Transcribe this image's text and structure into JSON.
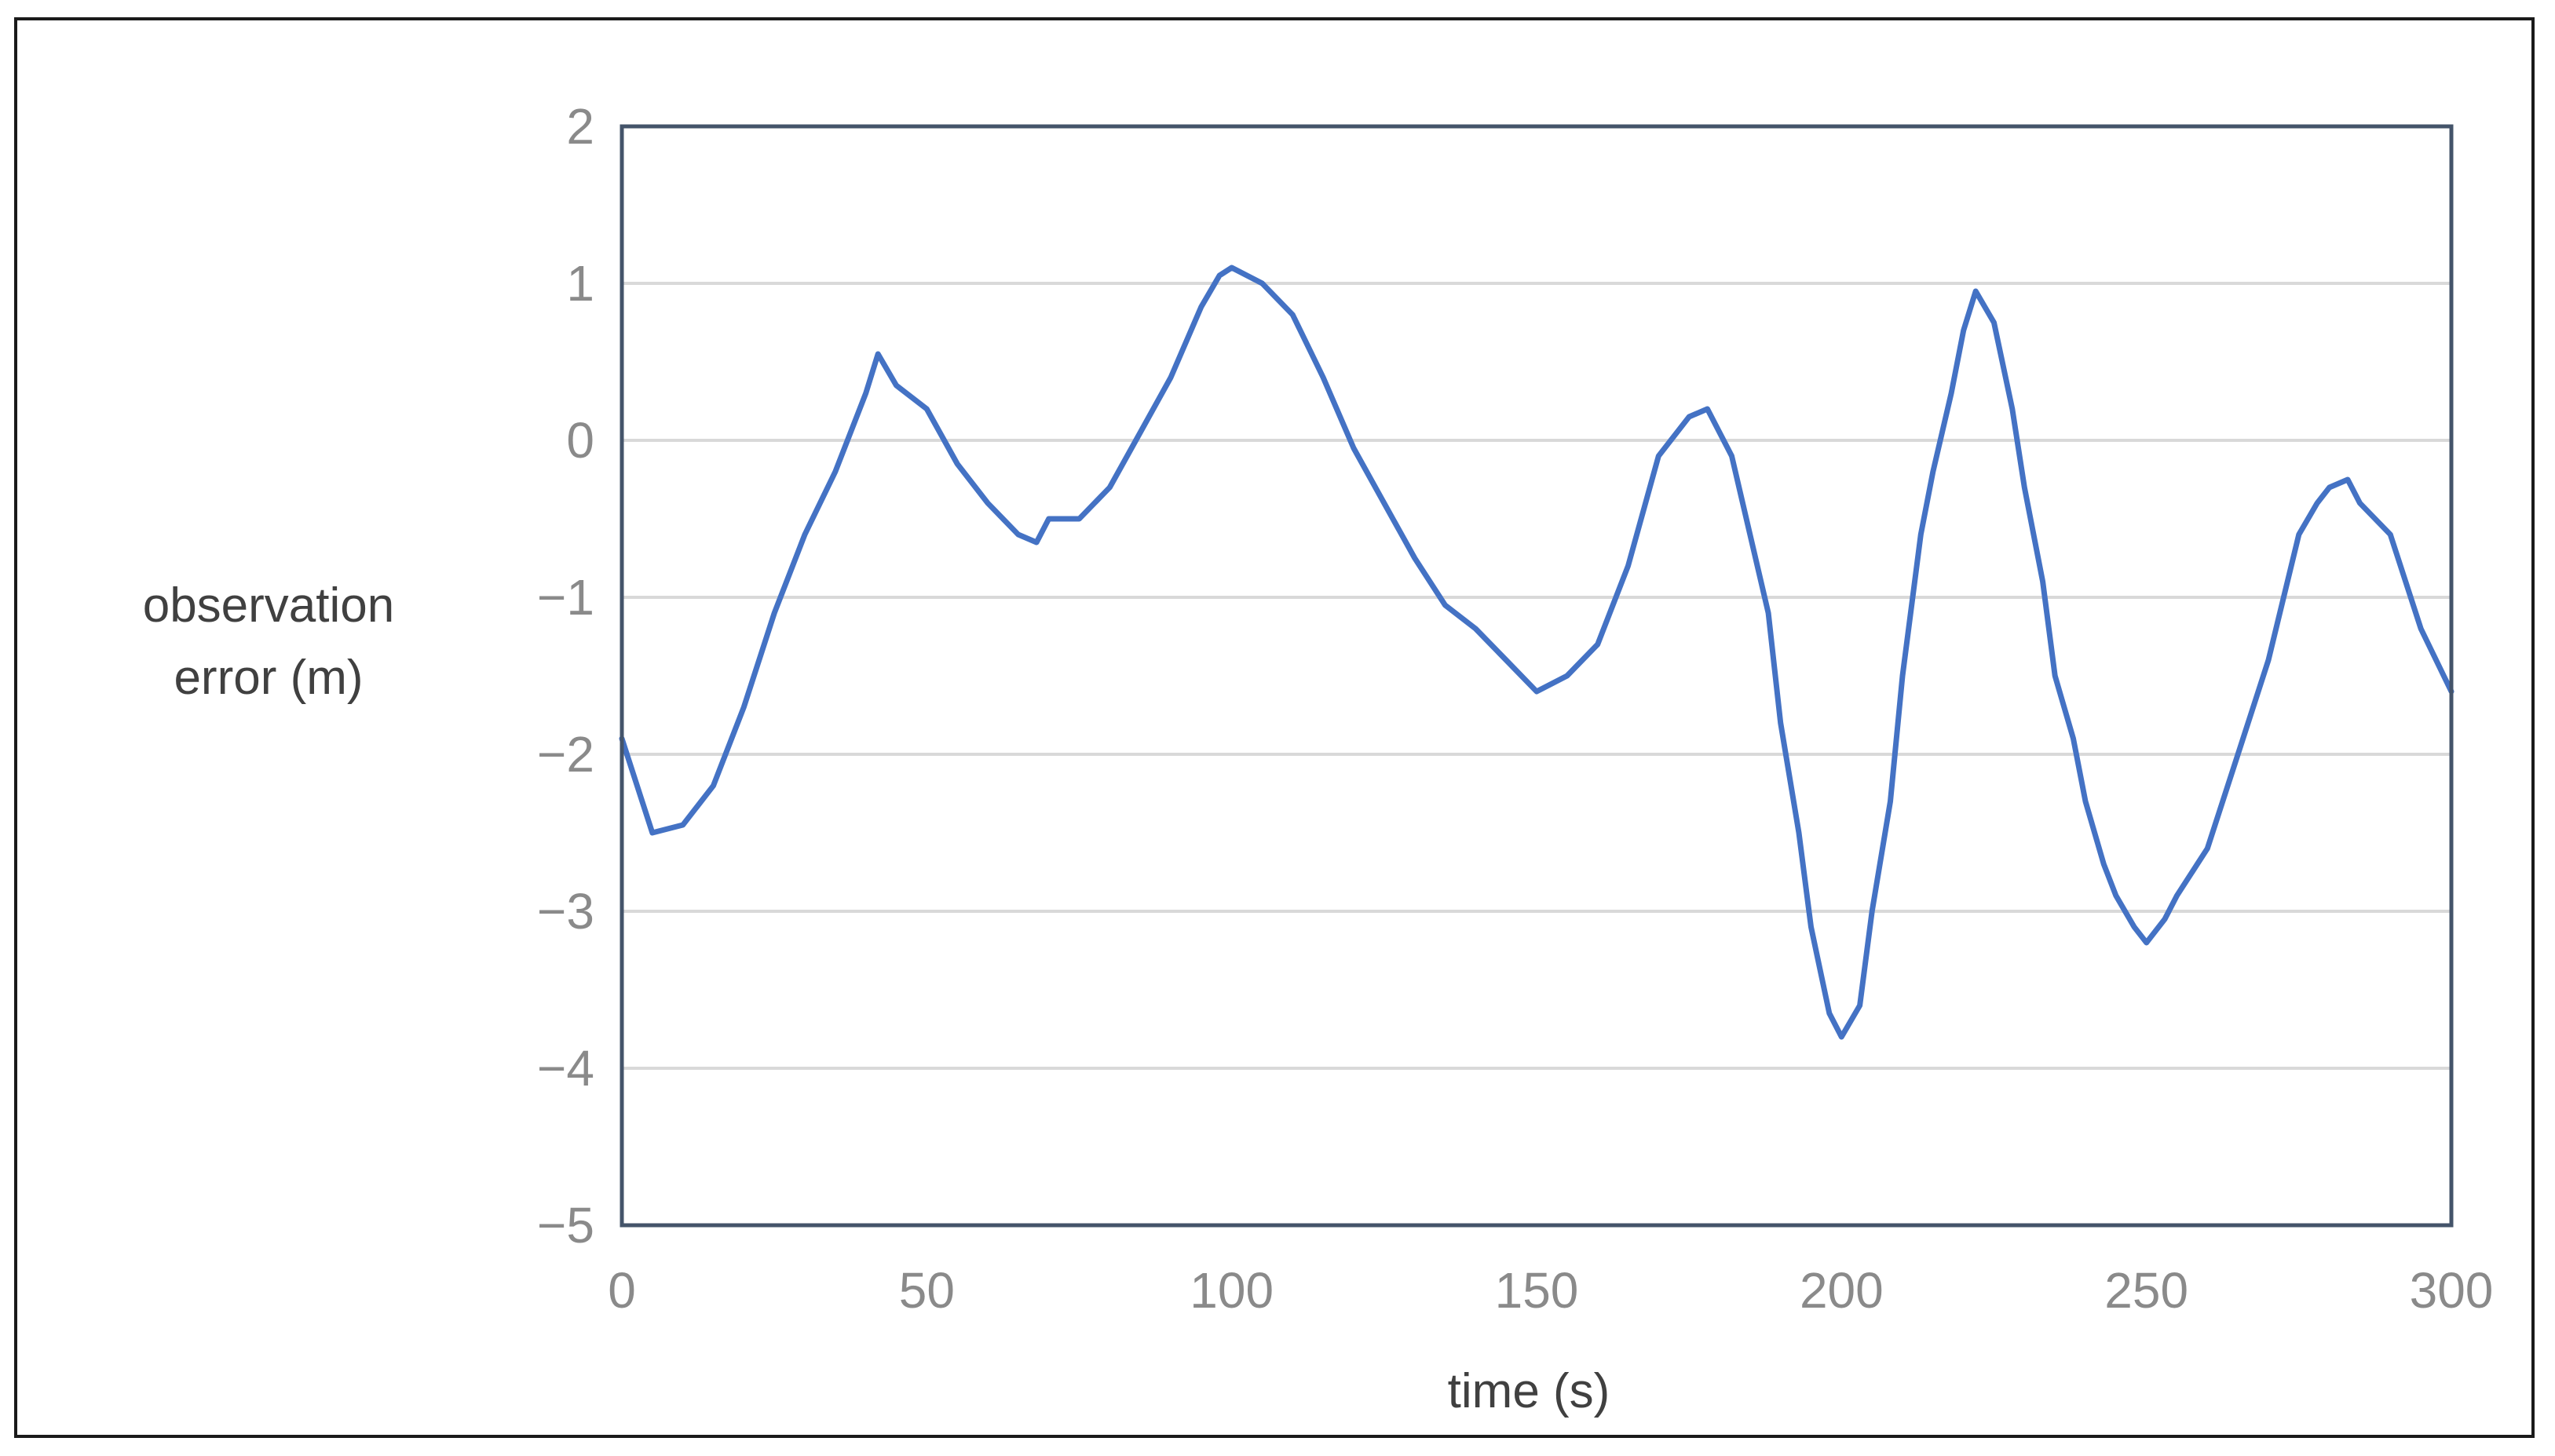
{
  "chart_data": {
    "type": "line",
    "title": "",
    "xlabel": "time (s)",
    "ylabel_lines": [
      "observation",
      "error (m)"
    ],
    "xlim": [
      0,
      300
    ],
    "ylim": [
      -5,
      2
    ],
    "x_ticks": [
      0,
      50,
      100,
      150,
      200,
      250,
      300
    ],
    "y_ticks": [
      2,
      1,
      0,
      -1,
      -2,
      -3,
      -4,
      -5
    ],
    "x_tick_labels": [
      "0",
      "50",
      "100",
      "150",
      "200",
      "250",
      "300"
    ],
    "y_tick_labels": [
      "2",
      "1",
      "0",
      "−1",
      "−2",
      "−3",
      "−4",
      "−5"
    ],
    "grid": true,
    "legend": "none",
    "colors": {
      "line": "#4472c4",
      "grid": "#d9d9d9",
      "frame": "#44546a"
    },
    "series": [
      {
        "x": [
          0,
          5,
          10,
          15,
          20,
          25,
          30,
          35,
          40,
          42,
          45,
          50,
          55,
          60,
          65,
          68,
          70,
          75,
          80,
          85,
          90,
          95,
          98,
          100,
          105,
          110,
          115,
          120,
          125,
          130,
          135,
          140,
          145,
          150,
          155,
          160,
          165,
          170,
          175,
          178,
          182,
          185,
          188,
          190,
          193,
          195,
          198,
          200,
          203,
          205,
          208,
          210,
          213,
          215,
          218,
          220,
          222,
          225,
          228,
          230,
          233,
          235,
          238,
          240,
          243,
          245,
          248,
          250,
          253,
          255,
          260,
          265,
          270,
          275,
          278,
          280,
          283,
          285,
          290,
          295,
          300
        ],
        "y": [
          -1.9,
          -2.5,
          -2.45,
          -2.2,
          -1.7,
          -1.1,
          -0.6,
          -0.2,
          0.3,
          0.55,
          0.35,
          0.2,
          -0.15,
          -0.4,
          -0.6,
          -0.65,
          -0.5,
          -0.5,
          -0.3,
          0.05,
          0.4,
          0.85,
          1.05,
          1.1,
          1.0,
          0.8,
          0.4,
          -0.05,
          -0.4,
          -0.75,
          -1.05,
          -1.2,
          -1.4,
          -1.6,
          -1.5,
          -1.3,
          -0.8,
          -0.1,
          0.15,
          0.2,
          -0.1,
          -0.6,
          -1.1,
          -1.8,
          -2.5,
          -3.1,
          -3.65,
          -3.8,
          -3.6,
          -3.0,
          -2.3,
          -1.5,
          -0.6,
          -0.2,
          0.3,
          0.7,
          0.95,
          0.75,
          0.2,
          -0.3,
          -0.9,
          -1.5,
          -1.9,
          -2.3,
          -2.7,
          -2.9,
          -3.1,
          -3.2,
          -3.05,
          -2.9,
          -2.6,
          -2.0,
          -1.4,
          -0.6,
          -0.4,
          -0.3,
          -0.25,
          -0.4,
          -0.6,
          -1.2,
          -1.6
        ]
      }
    ]
  }
}
